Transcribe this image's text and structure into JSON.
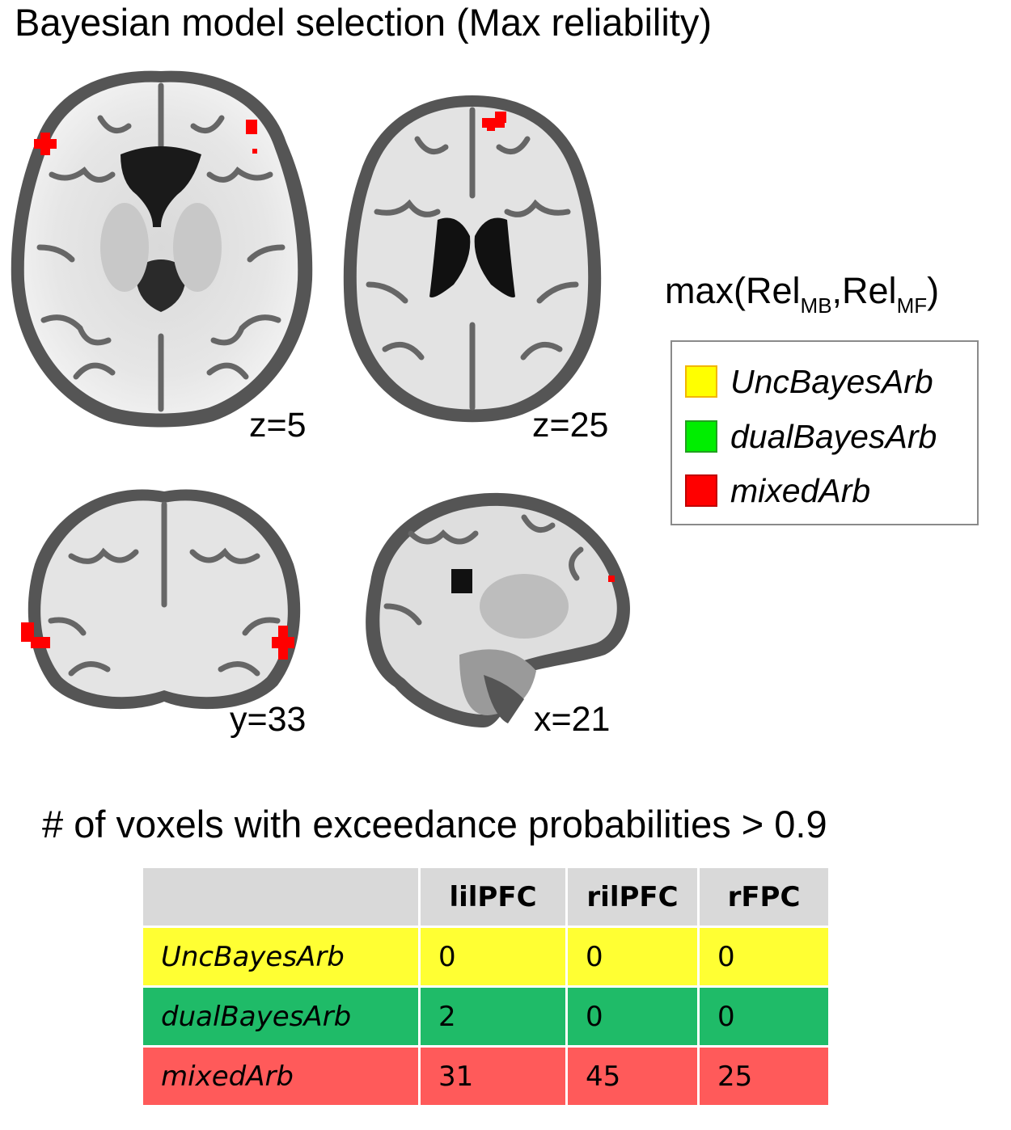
{
  "title": "Bayesian model selection (Max reliability)",
  "slices": [
    {
      "label": "z=5",
      "view": "axial"
    },
    {
      "label": "z=25",
      "view": "axial"
    },
    {
      "label": "y=33",
      "view": "coronal"
    },
    {
      "label": "x=21",
      "view": "sagittal"
    }
  ],
  "legend": {
    "heading_prefix": "max(Rel",
    "heading_sub1": "MB",
    "heading_mid": ",Rel",
    "heading_sub2": "MF",
    "heading_suffix": ")",
    "items": [
      {
        "label": "UncBayesArb",
        "color": "#ffff00",
        "border": "#f2b600"
      },
      {
        "label": "dualBayesArb",
        "color": "#00ee00",
        "border": "#22a020"
      },
      {
        "label": "mixedArb",
        "color": "#ff0000",
        "border": "#c00000"
      }
    ]
  },
  "table": {
    "title": "# of voxels with exceedance probabilities > 0.9",
    "columns": [
      "",
      "lilPFC",
      "rilPFC",
      "rFPC"
    ],
    "rows": [
      {
        "label": "UncBayesArb",
        "values": [
          "0",
          "0",
          "0"
        ],
        "color": "#ffff33"
      },
      {
        "label": "dualBayesArb",
        "values": [
          "2",
          "0",
          "0"
        ],
        "color": "#1fbb68"
      },
      {
        "label": "mixedArb",
        "values": [
          "31",
          "45",
          "25"
        ],
        "color": "#ff5a5a"
      }
    ]
  },
  "colors": {
    "activation": "#ff0000"
  }
}
